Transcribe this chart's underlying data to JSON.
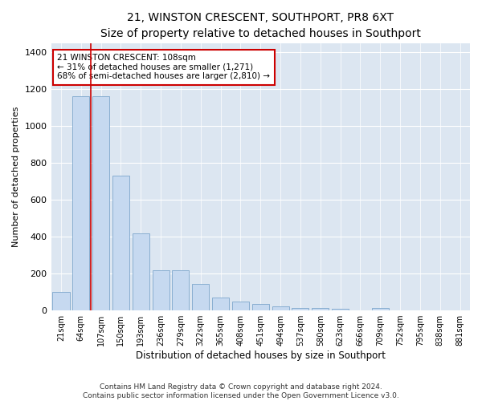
{
  "title": "21, WINSTON CRESCENT, SOUTHPORT, PR8 6XT",
  "subtitle": "Size of property relative to detached houses in Southport",
  "xlabel": "Distribution of detached houses by size in Southport",
  "ylabel": "Number of detached properties",
  "categories": [
    "21sqm",
    "64sqm",
    "107sqm",
    "150sqm",
    "193sqm",
    "236sqm",
    "279sqm",
    "322sqm",
    "365sqm",
    "408sqm",
    "451sqm",
    "494sqm",
    "537sqm",
    "580sqm",
    "623sqm",
    "666sqm",
    "709sqm",
    "752sqm",
    "795sqm",
    "838sqm",
    "881sqm"
  ],
  "values": [
    100,
    1160,
    1160,
    730,
    420,
    220,
    220,
    145,
    70,
    50,
    35,
    20,
    15,
    15,
    10,
    0,
    15,
    0,
    0,
    0,
    0
  ],
  "bar_color": "#c6d9f0",
  "bar_edge_color": "#7da6cc",
  "vline_color": "#cc0000",
  "annotation_text": "21 WINSTON CRESCENT: 108sqm\n← 31% of detached houses are smaller (1,271)\n68% of semi-detached houses are larger (2,810) →",
  "annotation_box_color": "#ffffff",
  "annotation_box_edgecolor": "#cc0000",
  "ylim": [
    0,
    1450
  ],
  "yticks": [
    0,
    200,
    400,
    600,
    800,
    1000,
    1200,
    1400
  ],
  "background_color": "#dce6f1",
  "grid_color": "#ffffff",
  "footer_text": "Contains HM Land Registry data © Crown copyright and database right 2024.\nContains public sector information licensed under the Open Government Licence v3.0."
}
